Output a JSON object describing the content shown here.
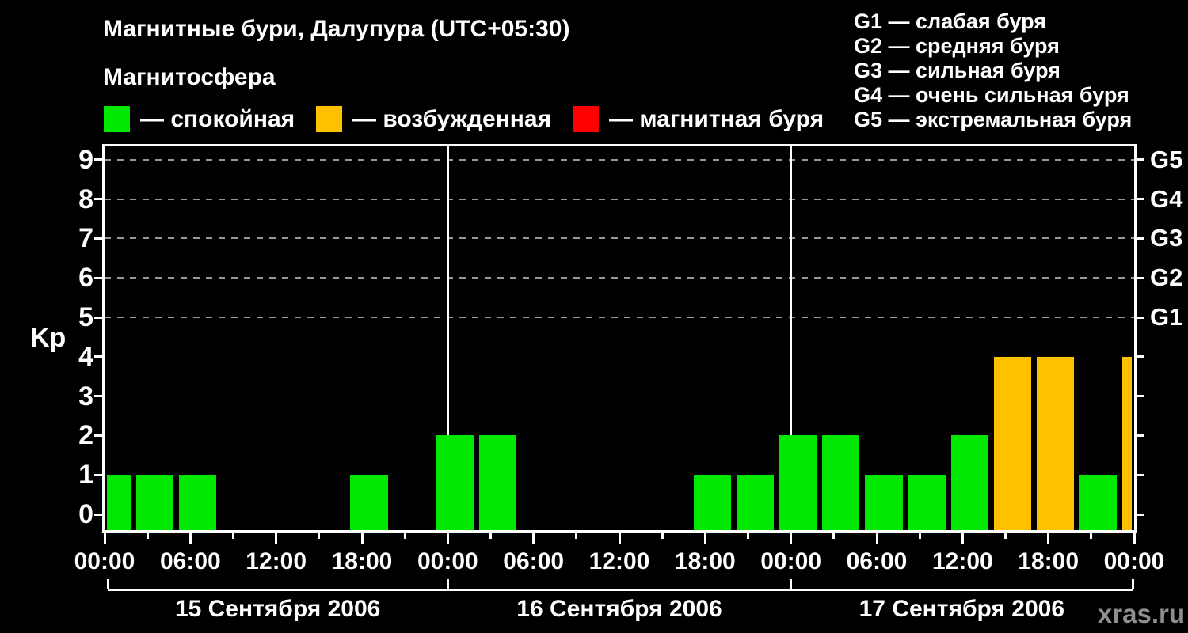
{
  "header": {
    "title": "Магнитные бури, Далупура (UTC+05:30)",
    "subtitle": "Магнитосфера"
  },
  "legend": [
    {
      "key": "quiet",
      "label": "— спокойная"
    },
    {
      "key": "active",
      "label": "— возбужденная"
    },
    {
      "key": "storm",
      "label": "— магнитная буря"
    }
  ],
  "storm_scale_legend": [
    "G1 — слабая буря",
    "G2 — средняя буря",
    "G3 — сильная буря",
    "G4 — очень сильная буря",
    "G5 — экстремальная буря"
  ],
  "colors": {
    "quiet": "#00e800",
    "active": "#ffc000",
    "storm": "#ff0000",
    "axis": "#ffffff",
    "grid": "#999999",
    "background": "#000000",
    "watermark": "#8f8f8f"
  },
  "footer": {
    "watermark": "xras.ru"
  },
  "chart_data": {
    "type": "bar",
    "title": "Магнитные бури, Далупура (UTC+05:30)",
    "subtitle": "Магнитосфера",
    "ylabel": "Kp",
    "ylim": [
      0,
      9
    ],
    "grid": "dashed horizontal lines at Kp 5-9 only",
    "bar_interval_hours": 3,
    "x_origin": "2006-09-15 00:00 local time (UTC+05:30)",
    "x_range_hours": [
      0,
      72
    ],
    "y_ticks": [
      0,
      1,
      2,
      3,
      4,
      5,
      6,
      7,
      8,
      9
    ],
    "time_ticks": [
      "00:00",
      "06:00",
      "12:00",
      "18:00",
      "00:00",
      "06:00",
      "12:00",
      "18:00",
      "00:00",
      "06:00",
      "12:00",
      "18:00",
      "00:00"
    ],
    "day_labels": [
      "15 Сентября 2006",
      "16 Сентября 2006",
      "17 Сентября 2006"
    ],
    "g_labels": [
      {
        "label": "G1",
        "kp": 5
      },
      {
        "label": "G2",
        "kp": 6
      },
      {
        "label": "G3",
        "kp": 7
      },
      {
        "label": "G4",
        "kp": 8
      },
      {
        "label": "G5",
        "kp": 9
      }
    ],
    "color_rule": "Kp 0-3 green (спокойная), Kp 4 orange (возбужденная), Kp 5+ red (магнитная буря); Kp 0 draws no bar",
    "bars": [
      {
        "start_hour": -1,
        "kp": 1
      },
      {
        "start_hour": 2,
        "kp": 1
      },
      {
        "start_hour": 5,
        "kp": 1
      },
      {
        "start_hour": 17,
        "kp": 1
      },
      {
        "start_hour": 23,
        "kp": 2
      },
      {
        "start_hour": 26,
        "kp": 2
      },
      {
        "start_hour": 41,
        "kp": 1
      },
      {
        "start_hour": 44,
        "kp": 1
      },
      {
        "start_hour": 47,
        "kp": 2
      },
      {
        "start_hour": 50,
        "kp": 2
      },
      {
        "start_hour": 53,
        "kp": 1
      },
      {
        "start_hour": 56,
        "kp": 1
      },
      {
        "start_hour": 59,
        "kp": 2
      },
      {
        "start_hour": 62,
        "kp": 4
      },
      {
        "start_hour": 65,
        "kp": 4
      },
      {
        "start_hour": 68,
        "kp": 1
      },
      {
        "start_hour": 71,
        "kp": 4
      }
    ]
  }
}
